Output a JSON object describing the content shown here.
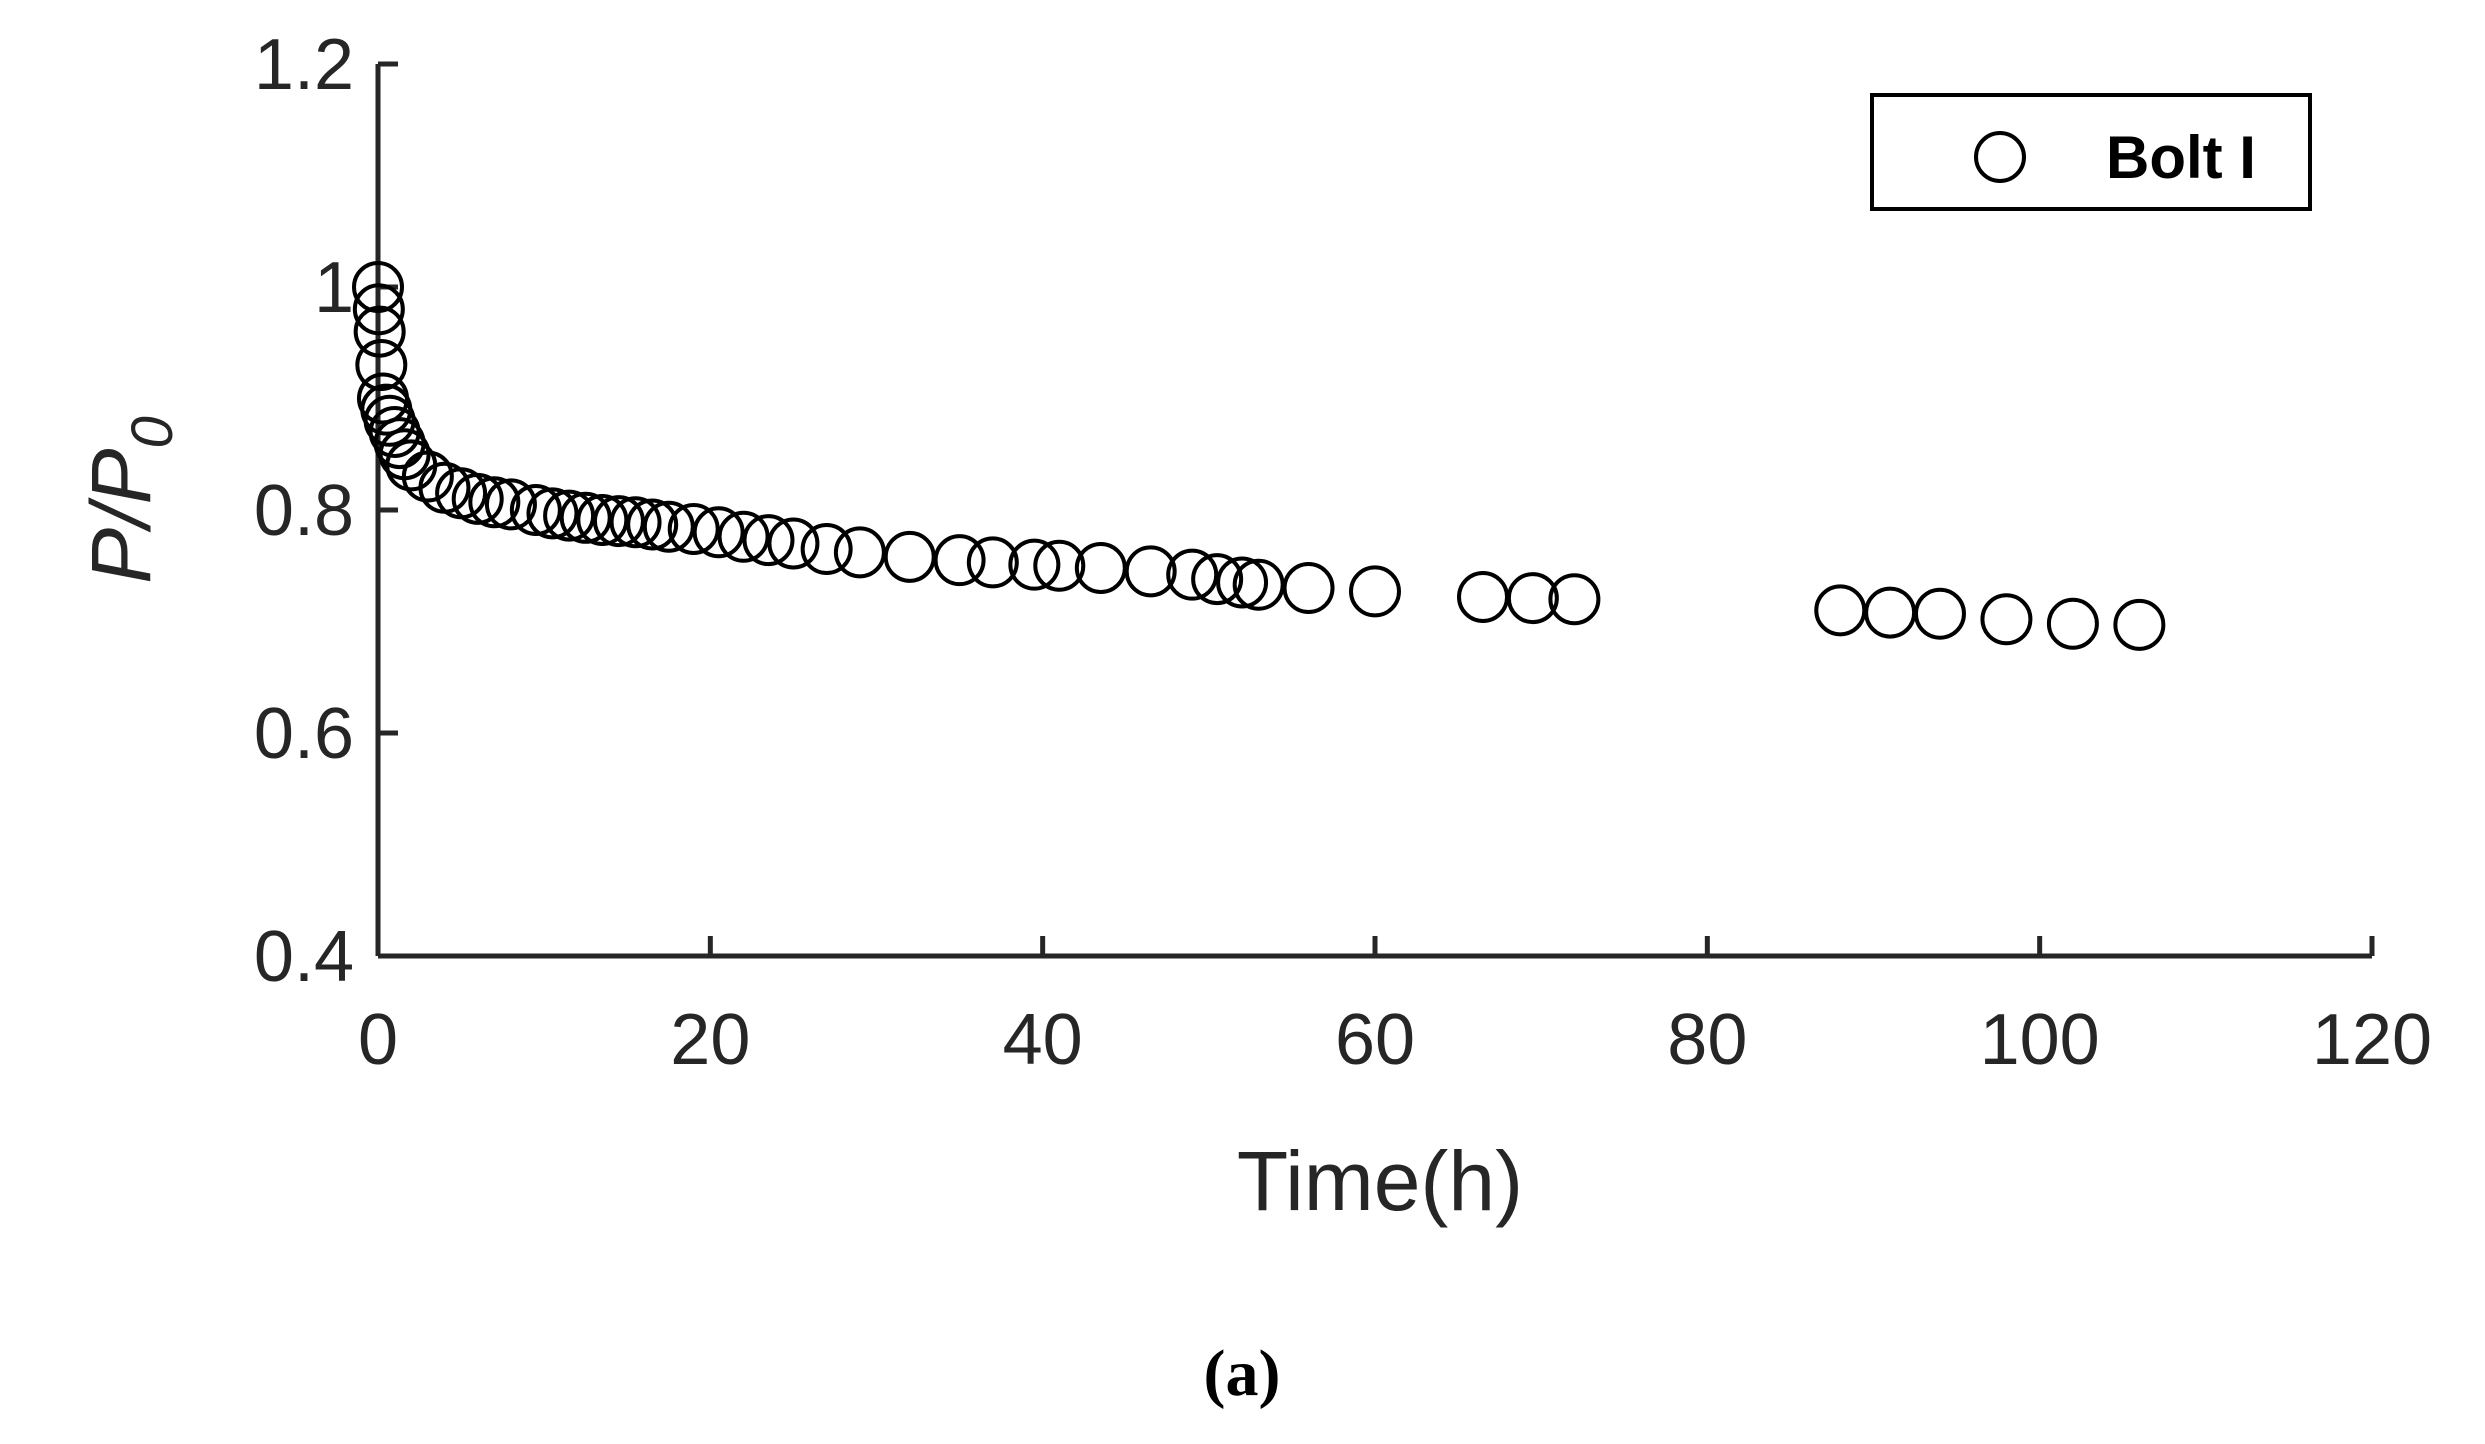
{
  "chart_data": {
    "type": "scatter",
    "xlabel": "Time(h)",
    "ylabel": {
      "main": "P/P",
      "sub": "0"
    },
    "xlim": [
      0,
      120
    ],
    "ylim": [
      0.4,
      1.2
    ],
    "xticks": [
      0,
      20,
      40,
      60,
      80,
      100,
      120
    ],
    "xtick_labels": [
      "0",
      "20",
      "40",
      "60",
      "80",
      "100",
      "120"
    ],
    "yticks": [
      0.4,
      0.6,
      0.8,
      1.0,
      1.2
    ],
    "ytick_labels": [
      "0.4",
      "0.6",
      "0.8",
      "1",
      "1.2"
    ],
    "grid": false,
    "legend_position": "top-right",
    "caption": "(a)",
    "series": [
      {
        "name": "Bolt I",
        "marker": "open-circle",
        "color": "#000000",
        "x": [
          0,
          0.05,
          0.1,
          0.2,
          0.3,
          0.5,
          0.7,
          1.0,
          1.3,
          1.6,
          2.0,
          3.0,
          4.0,
          5.0,
          6.0,
          7.0,
          8.0,
          9.5,
          10.5,
          11.5,
          12.5,
          13.5,
          14.5,
          15.5,
          16.5,
          17.5,
          19.0,
          20.5,
          22.0,
          23.5,
          25.0,
          27.0,
          29.0,
          32.0,
          35.0,
          37.0,
          39.5,
          41.0,
          43.5,
          46.5,
          49.0,
          50.5,
          52.0,
          53.0,
          56.0,
          60.0,
          66.5,
          69.5,
          72.0,
          88.0,
          91.0,
          94.0,
          98.0,
          102.0,
          106.0
        ],
        "y": [
          1.0,
          0.98,
          0.96,
          0.93,
          0.9,
          0.89,
          0.88,
          0.87,
          0.86,
          0.85,
          0.84,
          0.83,
          0.82,
          0.815,
          0.81,
          0.807,
          0.805,
          0.8,
          0.797,
          0.795,
          0.793,
          0.791,
          0.79,
          0.789,
          0.787,
          0.785,
          0.783,
          0.78,
          0.776,
          0.773,
          0.77,
          0.765,
          0.762,
          0.758,
          0.755,
          0.753,
          0.751,
          0.75,
          0.748,
          0.745,
          0.742,
          0.738,
          0.735,
          0.733,
          0.73,
          0.727,
          0.722,
          0.721,
          0.72,
          0.71,
          0.708,
          0.707,
          0.702,
          0.698,
          0.697
        ]
      }
    ]
  }
}
